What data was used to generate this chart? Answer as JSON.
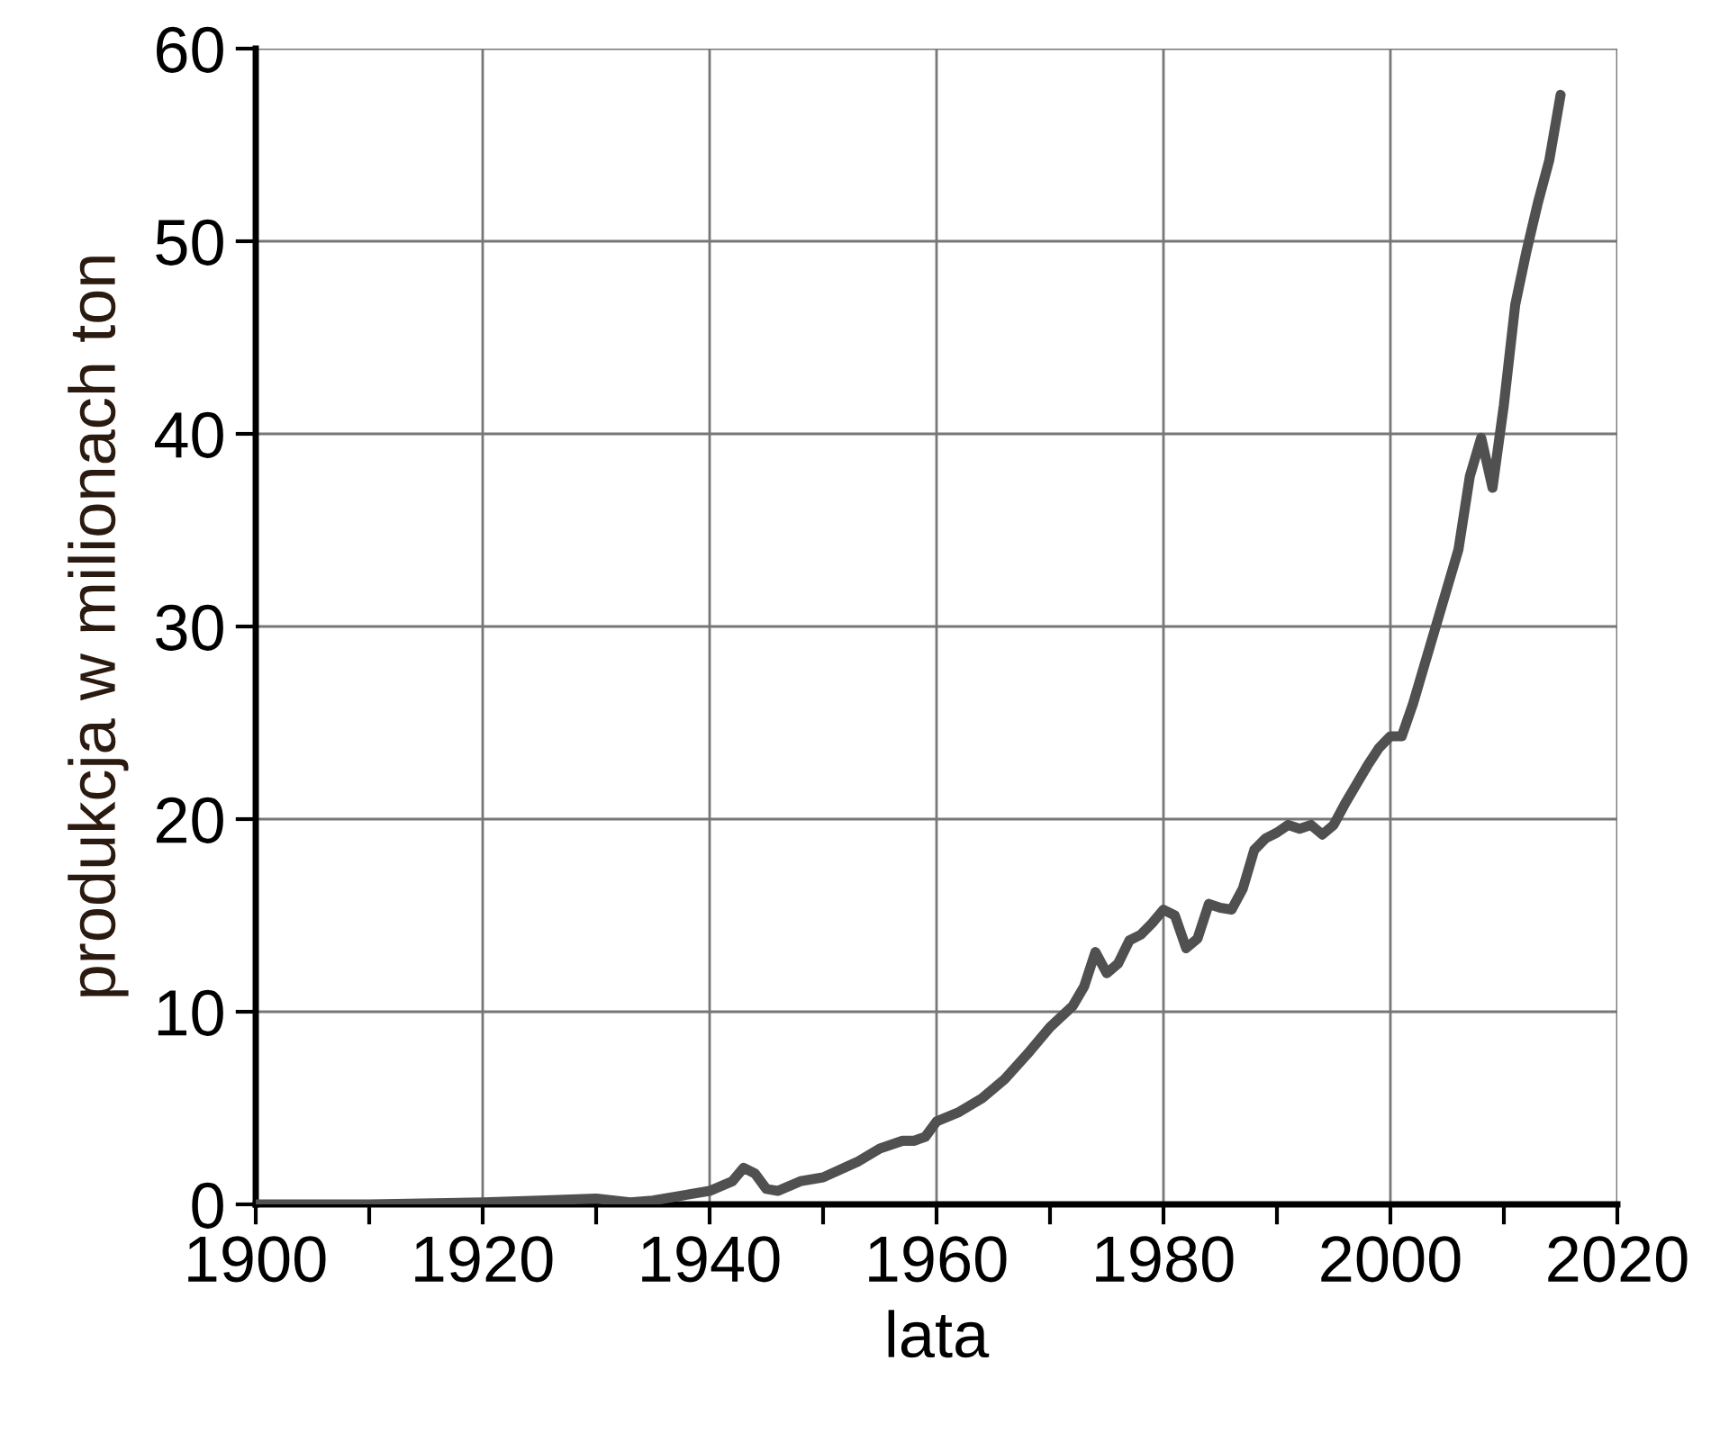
{
  "chart_data": {
    "type": "line",
    "xlabel": "lata",
    "ylabel": "produkcja w milionach ton",
    "x": [
      1900,
      1910,
      1920,
      1925,
      1930,
      1933,
      1935,
      1940,
      1942,
      1943,
      1944,
      1945,
      1946,
      1948,
      1950,
      1953,
      1955,
      1957,
      1958,
      1959,
      1960,
      1962,
      1964,
      1966,
      1968,
      1970,
      1972,
      1973,
      1974,
      1975,
      1976,
      1977,
      1978,
      1979,
      1980,
      1981,
      1982,
      1983,
      1984,
      1985,
      1986,
      1987,
      1988,
      1989,
      1990,
      1991,
      1992,
      1993,
      1994,
      1995,
      1996,
      1997,
      1998,
      1999,
      2000,
      2001,
      2002,
      2003,
      2004,
      2005,
      2006,
      2007,
      2008,
      2009,
      2010,
      2011,
      2012,
      2013,
      2014,
      2015
    ],
    "series": [
      {
        "color": "#505050",
        "values": [
          0,
          0,
          0.1,
          0.2,
          0.3,
          0.1,
          0.2,
          0.7,
          1.2,
          1.9,
          1.6,
          0.8,
          0.7,
          1.2,
          1.4,
          2.2,
          2.9,
          3.3,
          3.3,
          3.5,
          4.3,
          4.8,
          5.5,
          6.5,
          7.8,
          9.2,
          10.3,
          11.3,
          13.1,
          12.0,
          12.5,
          13.7,
          14.0,
          14.6,
          15.3,
          15.0,
          13.3,
          13.8,
          15.6,
          15.4,
          15.3,
          16.4,
          18.4,
          19.0,
          19.3,
          19.7,
          19.5,
          19.7,
          19.2,
          19.7,
          20.8,
          21.8,
          22.8,
          23.7,
          24.3,
          24.3,
          26.0,
          28.0,
          30.0,
          32.0,
          34.0,
          37.8,
          39.8,
          37.2,
          41.5,
          46.7,
          49.5,
          52.0,
          54.2,
          57.6
        ]
      }
    ],
    "xlim": [
      1900,
      2020
    ],
    "ylim": [
      0,
      60
    ],
    "xticks": [
      1900,
      {
        "value": 1910,
        "label": null
      },
      1920,
      {
        "value": 1930,
        "label": null
      },
      1940,
      {
        "value": 1950,
        "label": null
      },
      1960,
      {
        "value": 1970,
        "label": null
      },
      1980,
      {
        "value": 1990,
        "label": null
      },
      2000,
      {
        "value": 2010,
        "label": null
      },
      2020
    ],
    "yticks": [
      0,
      10,
      20,
      30,
      40,
      50,
      60
    ],
    "grid": true,
    "marker": "none",
    "line_style": "solid"
  }
}
